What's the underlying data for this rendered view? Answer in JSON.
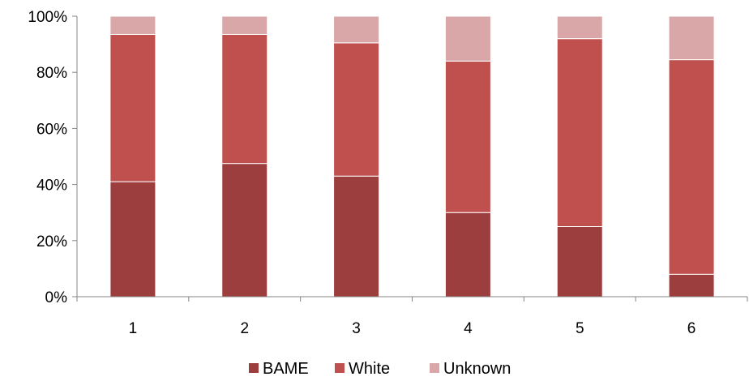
{
  "chart_data": {
    "type": "bar",
    "stacked": true,
    "categories": [
      "1",
      "2",
      "3",
      "4",
      "5",
      "6"
    ],
    "series": [
      {
        "name": "BAME",
        "values": [
          41,
          47.5,
          43,
          30,
          25,
          8
        ],
        "color": "#9d3e3e"
      },
      {
        "name": "White",
        "values": [
          52.5,
          46,
          47.5,
          54,
          67,
          76.5
        ],
        "color": "#c0504d"
      },
      {
        "name": "Unknown",
        "values": [
          6.5,
          6.5,
          9.5,
          16,
          8,
          15.5
        ],
        "color": "#d9a7a7"
      }
    ],
    "ylim": [
      0,
      100
    ],
    "yticks": [
      "0%",
      "20%",
      "40%",
      "60%",
      "80%",
      "100%"
    ],
    "title": "",
    "xlabel": "",
    "ylabel": "",
    "grid": false,
    "legend_position": "bottom"
  }
}
